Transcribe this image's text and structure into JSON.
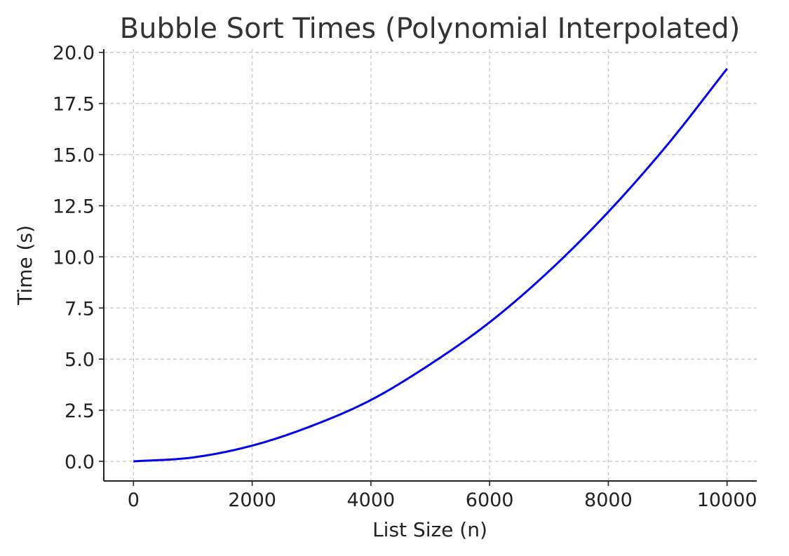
{
  "chart_data": {
    "type": "line",
    "title": "Bubble Sort Times (Polynomial Interpolated)",
    "xlabel": "List Size (n)",
    "ylabel": "Time (s)",
    "xlim": [
      -500,
      10500
    ],
    "ylim": [
      -0.96,
      20.16
    ],
    "xticks": [
      0,
      2000,
      4000,
      6000,
      8000,
      10000
    ],
    "xtick_labels": [
      "0",
      "2000",
      "4000",
      "6000",
      "8000",
      "10000"
    ],
    "yticks": [
      0,
      2.5,
      5,
      7.5,
      10,
      12.5,
      15,
      17.5,
      20
    ],
    "ytick_labels": [
      "0.0",
      "2.5",
      "5.0",
      "7.5",
      "10.0",
      "12.5",
      "15.0",
      "17.5",
      "20.0"
    ],
    "grid": true,
    "series": [
      {
        "color": "#0000ee",
        "x": [
          0,
          1000,
          2000,
          3000,
          4000,
          5000,
          6000,
          7000,
          8000,
          9000,
          10000
        ],
        "y": [
          0,
          0.19,
          0.77,
          1.73,
          3.0,
          4.75,
          6.8,
          9.3,
          12.2,
          15.5,
          19.2
        ]
      }
    ]
  }
}
